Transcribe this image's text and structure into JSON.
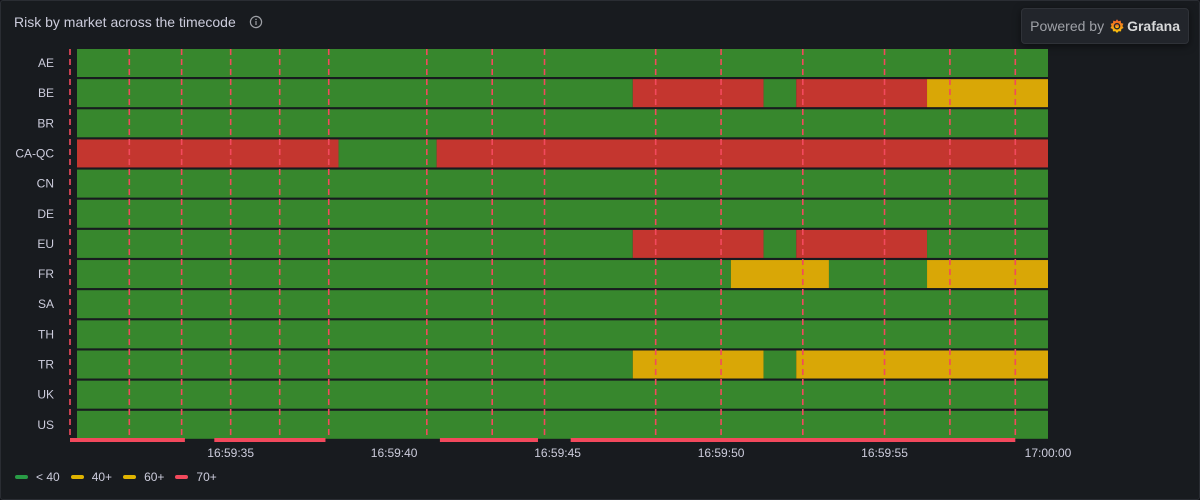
{
  "panel": {
    "title": "Risk by market across the timecode",
    "info_icon": "info-circle-icon"
  },
  "badge": {
    "powered_by": "Powered by",
    "brand": "Grafana",
    "logo_icon": "grafana-logo-icon"
  },
  "legend": [
    {
      "label": "< 40",
      "color": "#299c46"
    },
    {
      "label": "40+",
      "color": "#e0b400"
    },
    {
      "label": "60+",
      "color": "#e0b400"
    },
    {
      "label": "70+",
      "color": "#f2495c"
    }
  ],
  "chart_data": {
    "type": "state-timeline",
    "title": "Risk by market across the timecode",
    "x_range": [
      "16:59:30.3",
      "17:00:00"
    ],
    "x_ticks": [
      "16:59:35",
      "16:59:40",
      "16:59:45",
      "16:59:50",
      "16:59:55",
      "17:00:00"
    ],
    "colors": {
      "green": "#37872d",
      "yellow": "#d9a706",
      "red": "#c4362f"
    },
    "rows": [
      {
        "name": "AE",
        "segments": [
          {
            "start": "16:59:30.3",
            "end": "17:00:00",
            "state": "green"
          }
        ]
      },
      {
        "name": "BE",
        "segments": [
          {
            "start": "16:59:30.3",
            "end": "16:59:47.3",
            "state": "green"
          },
          {
            "start": "16:59:47.3",
            "end": "16:59:51.3",
            "state": "red"
          },
          {
            "start": "16:59:51.3",
            "end": "16:59:52.3",
            "state": "green"
          },
          {
            "start": "16:59:52.3",
            "end": "16:59:56.3",
            "state": "red"
          },
          {
            "start": "16:59:56.3",
            "end": "17:00:00",
            "state": "yellow"
          }
        ]
      },
      {
        "name": "BR",
        "segments": [
          {
            "start": "16:59:30.3",
            "end": "17:00:00",
            "state": "green"
          }
        ]
      },
      {
        "name": "CA-QC",
        "segments": [
          {
            "start": "16:59:30.3",
            "end": "16:59:38.3",
            "state": "red"
          },
          {
            "start": "16:59:38.3",
            "end": "16:59:41.3",
            "state": "green"
          },
          {
            "start": "16:59:41.3",
            "end": "17:00:00",
            "state": "red"
          }
        ]
      },
      {
        "name": "CN",
        "segments": [
          {
            "start": "16:59:30.3",
            "end": "17:00:00",
            "state": "green"
          }
        ]
      },
      {
        "name": "DE",
        "segments": [
          {
            "start": "16:59:30.3",
            "end": "17:00:00",
            "state": "green"
          }
        ]
      },
      {
        "name": "EU",
        "segments": [
          {
            "start": "16:59:30.3",
            "end": "16:59:47.3",
            "state": "green"
          },
          {
            "start": "16:59:47.3",
            "end": "16:59:51.3",
            "state": "red"
          },
          {
            "start": "16:59:51.3",
            "end": "16:59:52.3",
            "state": "green"
          },
          {
            "start": "16:59:52.3",
            "end": "16:59:56.3",
            "state": "red"
          },
          {
            "start": "16:59:56.3",
            "end": "17:00:00",
            "state": "green"
          }
        ]
      },
      {
        "name": "FR",
        "segments": [
          {
            "start": "16:59:30.3",
            "end": "16:59:50.3",
            "state": "green"
          },
          {
            "start": "16:59:50.3",
            "end": "16:59:53.3",
            "state": "yellow"
          },
          {
            "start": "16:59:53.3",
            "end": "16:59:56.3",
            "state": "green"
          },
          {
            "start": "16:59:56.3",
            "end": "17:00:00",
            "state": "yellow"
          }
        ]
      },
      {
        "name": "SA",
        "segments": [
          {
            "start": "16:59:30.3",
            "end": "17:00:00",
            "state": "green"
          }
        ]
      },
      {
        "name": "TH",
        "segments": [
          {
            "start": "16:59:30.3",
            "end": "17:00:00",
            "state": "green"
          }
        ]
      },
      {
        "name": "TR",
        "segments": [
          {
            "start": "16:59:30.3",
            "end": "16:59:47.3",
            "state": "green"
          },
          {
            "start": "16:59:47.3",
            "end": "16:59:51.3",
            "state": "yellow"
          },
          {
            "start": "16:59:51.3",
            "end": "16:59:52.3",
            "state": "green"
          },
          {
            "start": "16:59:52.3",
            "end": "17:00:00",
            "state": "yellow"
          }
        ]
      },
      {
        "name": "UK",
        "segments": [
          {
            "start": "16:59:30.3",
            "end": "17:00:00",
            "state": "green"
          }
        ]
      },
      {
        "name": "US",
        "segments": [
          {
            "start": "16:59:30.3",
            "end": "17:00:00",
            "state": "green"
          }
        ]
      }
    ],
    "annotation_markers": [
      "16:59:30.3",
      "16:59:31.9",
      "16:59:33.5",
      "16:59:35.0",
      "16:59:36.5",
      "16:59:38.0",
      "16:59:41.0",
      "16:59:43.0",
      "16:59:44.6",
      "16:59:48.0",
      "16:59:50.0",
      "16:59:52.5",
      "16:59:55.0",
      "16:59:57.0",
      "16:59:59.0"
    ],
    "annotation_ranges": [
      {
        "start": "16:59:30.3",
        "end": "16:59:33.6"
      },
      {
        "start": "16:59:34.5",
        "end": "16:59:37.9"
      },
      {
        "start": "16:59:41.4",
        "end": "16:59:44.4"
      },
      {
        "start": "16:59:45.4",
        "end": "16:59:59.0"
      }
    ]
  }
}
